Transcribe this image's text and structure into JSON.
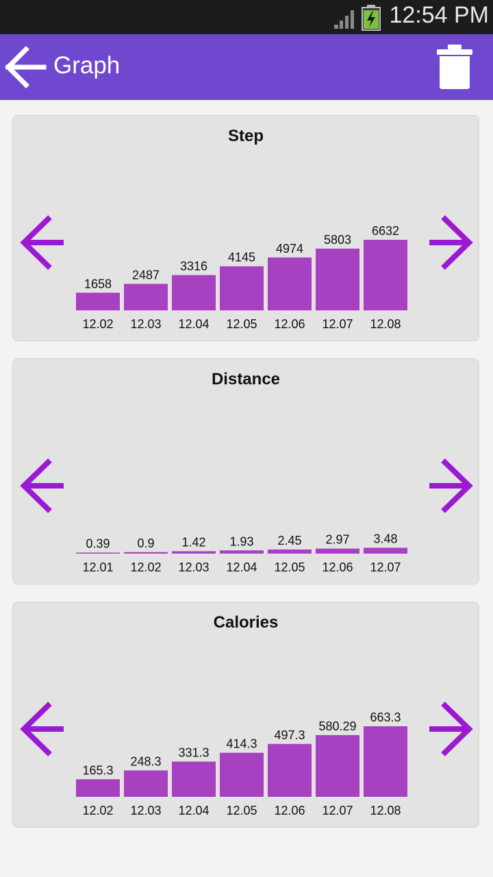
{
  "status_bar": {
    "time": "12:54 PM"
  },
  "app_bar": {
    "title": "Graph"
  },
  "colors": {
    "bar": "#a840c2",
    "arrow": "#9c19d3",
    "app_bar": "#7048cf"
  },
  "icons": {
    "back": "arrow-back-icon",
    "delete": "trash-icon",
    "prev": "arrow-left-icon",
    "next": "arrow-right-icon"
  },
  "cards": [
    {
      "title": "Step",
      "chart_data": {
        "type": "bar",
        "title": "Step",
        "categories": [
          "12.02",
          "12.03",
          "12.04",
          "12.05",
          "12.06",
          "12.07",
          "12.08"
        ],
        "values": [
          1658,
          2487,
          3316,
          4145,
          4974,
          5803,
          6632
        ],
        "value_labels": [
          "1658",
          "2487",
          "3316",
          "4145",
          "4974",
          "5803",
          "6632"
        ]
      }
    },
    {
      "title": "Distance",
      "chart_data": {
        "type": "bar",
        "title": "Distance",
        "categories": [
          "12.01",
          "12.02",
          "12.03",
          "12.04",
          "12.05",
          "12.06",
          "12.07"
        ],
        "values": [
          0.39,
          0.9,
          1.42,
          1.93,
          2.45,
          2.97,
          3.48
        ],
        "value_labels": [
          "0.39",
          "0.9",
          "1.42",
          "1.93",
          "2.45",
          "2.97",
          "3.48"
        ]
      }
    },
    {
      "title": "Calories",
      "chart_data": {
        "type": "bar",
        "title": "Calories",
        "categories": [
          "12.02",
          "12.03",
          "12.04",
          "12.05",
          "12.06",
          "12.07",
          "12.08"
        ],
        "values": [
          165.3,
          248.3,
          331.3,
          414.3,
          497.3,
          580.29,
          663.3
        ],
        "value_labels": [
          "165.3",
          "248.3",
          "331.3",
          "414.3",
          "497.3",
          "580.29",
          "663.3"
        ]
      }
    }
  ]
}
